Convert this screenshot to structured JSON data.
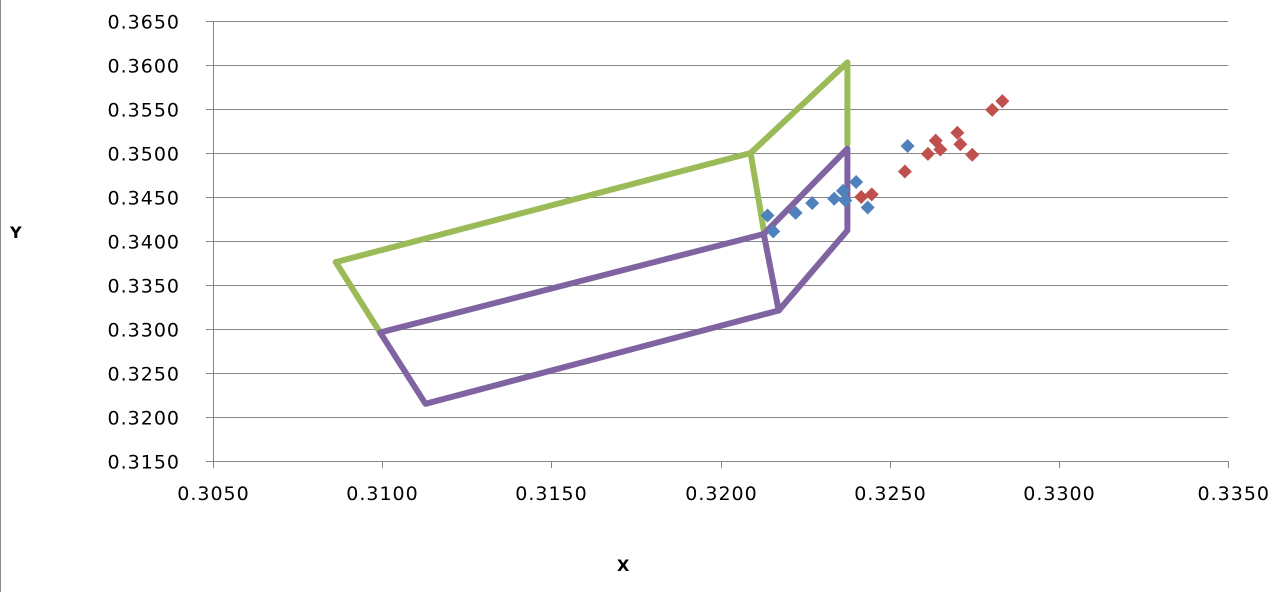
{
  "chart_data": {
    "type": "scatter",
    "title": "",
    "xlabel": "X",
    "ylabel": "Y",
    "xlim": [
      0.305,
      0.335
    ],
    "ylim": [
      0.315,
      0.365
    ],
    "xticks": [
      0.305,
      0.31,
      0.315,
      0.32,
      0.325,
      0.33,
      0.335
    ],
    "xtick_labels": [
      "0.3050",
      "0.3100",
      "0.3150",
      "0.3200",
      "0.3250",
      "0.3300",
      "0.3350"
    ],
    "yticks": [
      0.315,
      0.32,
      0.325,
      0.33,
      0.335,
      0.34,
      0.345,
      0.35,
      0.355,
      0.36,
      0.365
    ],
    "ytick_labels": [
      "0.3150",
      "0.3200",
      "0.3250",
      "0.3300",
      "0.3350",
      "0.3400",
      "0.3450",
      "0.3500",
      "0.3550",
      "0.3600",
      "0.3650"
    ],
    "grid": "horizontal",
    "legend": "none",
    "outlines": [
      {
        "color": "#9bbb59",
        "points": [
          [
            0.30863,
            0.3376
          ],
          [
            0.32089,
            0.35
          ],
          [
            0.32375,
            0.3603
          ],
          [
            0.32375,
            0.351
          ]
        ]
      },
      {
        "color": "#9bbb59",
        "points": [
          [
            0.30863,
            0.3376
          ],
          [
            0.30994,
            0.3296
          ]
        ]
      },
      {
        "color": "#9bbb59",
        "points": [
          [
            0.32089,
            0.35
          ],
          [
            0.32128,
            0.3412
          ]
        ]
      },
      {
        "color": "#8064a2",
        "points": [
          [
            0.30994,
            0.3296
          ],
          [
            0.32128,
            0.3408
          ],
          [
            0.32375,
            0.3505
          ],
          [
            0.32375,
            0.3412
          ],
          [
            0.32172,
            0.3321
          ],
          [
            0.31128,
            0.3215
          ],
          [
            0.30994,
            0.3296
          ]
        ]
      },
      {
        "color": "#8064a2",
        "points": [
          [
            0.32128,
            0.3408
          ],
          [
            0.32172,
            0.3321
          ]
        ]
      }
    ],
    "series": [
      {
        "color": "#4f81bd",
        "points": [
          [
            0.32139,
            0.3429
          ],
          [
            0.32156,
            0.3411
          ],
          [
            0.32222,
            0.3432
          ],
          [
            0.32271,
            0.3443
          ],
          [
            0.32336,
            0.3448
          ],
          [
            0.32362,
            0.3457
          ],
          [
            0.32369,
            0.3446
          ],
          [
            0.32401,
            0.3467
          ],
          [
            0.32435,
            0.3438
          ],
          [
            0.32553,
            0.3508
          ]
        ]
      },
      {
        "color": "#c0504d",
        "points": [
          [
            0.32416,
            0.345
          ],
          [
            0.32447,
            0.3453
          ],
          [
            0.32545,
            0.3479
          ],
          [
            0.32613,
            0.3499
          ],
          [
            0.32636,
            0.3514
          ],
          [
            0.3265,
            0.3504
          ],
          [
            0.327,
            0.3523
          ],
          [
            0.32709,
            0.351
          ],
          [
            0.32744,
            0.3498
          ],
          [
            0.32803,
            0.3549
          ],
          [
            0.32833,
            0.3559
          ]
        ]
      }
    ]
  }
}
